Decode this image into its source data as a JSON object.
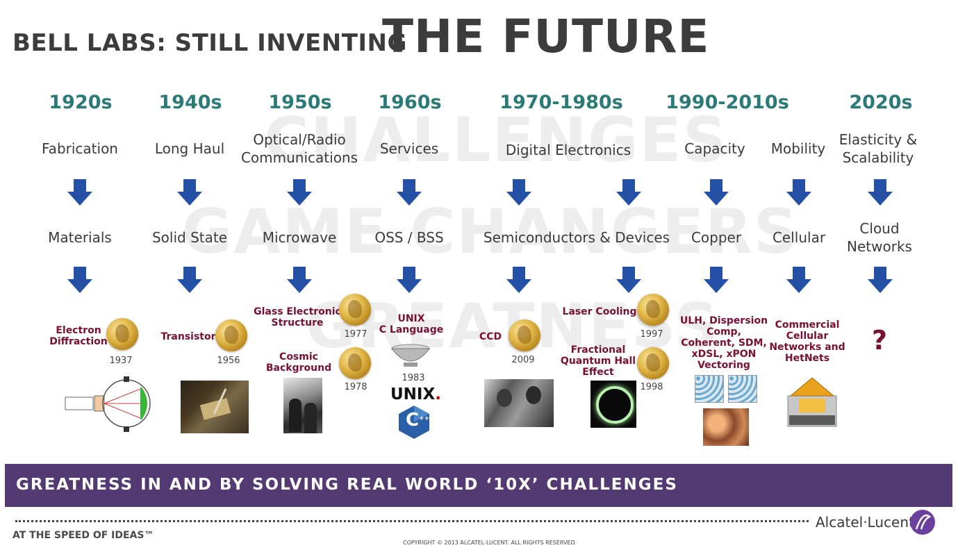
{
  "title": {
    "prefix": "BELL LABS: STILL INVENTING",
    "main": "THE FUTURE"
  },
  "watermarks": [
    "CHALLENGES",
    "GAME CHANGERS",
    "GREATNESS"
  ],
  "eras": [
    "1920s",
    "1940s",
    "1950s",
    "1960s",
    "1970-1980s",
    "1990-2010s",
    "2020s"
  ],
  "challenges": [
    "Fabrication",
    "Long Haul",
    "Optical/Radio\nCommunications",
    "Services",
    "Digital Electronics",
    "Capacity",
    "Mobility",
    "Elasticity &\nScalability"
  ],
  "game_changers": [
    "Materials",
    "Solid State",
    "Microwave",
    "OSS / BSS",
    "Semiconductors & Devices",
    "Copper",
    "Cellular",
    "Cloud\nNetworks"
  ],
  "inventions": {
    "electron_diffraction": {
      "label": "Electron\nDiffraction",
      "year": "1937"
    },
    "transistor": {
      "label": "Transistor",
      "year": "1956"
    },
    "glass_electronic": {
      "label": "Glass Electronic\nStructure",
      "year": "1977"
    },
    "cosmic_background": {
      "label": "Cosmic\nBackground",
      "year": "1978"
    },
    "unix": {
      "label": "UNIX\nC Language",
      "year": "1983"
    },
    "ccd": {
      "label": "CCD",
      "year": "2009"
    },
    "laser_cooling": {
      "label": "Laser Cooling",
      "year": "1997"
    },
    "quantum_hall": {
      "label": "Fractional\nQuantum Hall\nEffect",
      "year": "1998"
    },
    "copper_tech": {
      "label": "ULH, Dispersion\nComp,\nCoherent, SDM,\nxDSL, xPON\nVectoring"
    },
    "cellular_tech": {
      "label": "Commercial\nCellular\nNetworks and\nHetNets"
    },
    "future": {
      "label": "?"
    }
  },
  "unix_logo_text": "UNIX",
  "unix_logo_mark": ".",
  "c_logo_text": "C",
  "c_logo_plus": "++",
  "banner": "GREATNESS IN AND BY SOLVING REAL WORLD ‘10X’ CHALLENGES",
  "footer": {
    "tagline": "AT THE SPEED OF IDEAS™",
    "copyright": "COPYRIGHT © 2013 ALCATEL-LUCENT. ALL RIGHTS RESERVED.",
    "brand": "Alcatel·Lucent"
  },
  "colors": {
    "era": "#2a7a78",
    "arrow": "#2451a6",
    "invention": "#7a1031",
    "banner": "#543a72"
  }
}
